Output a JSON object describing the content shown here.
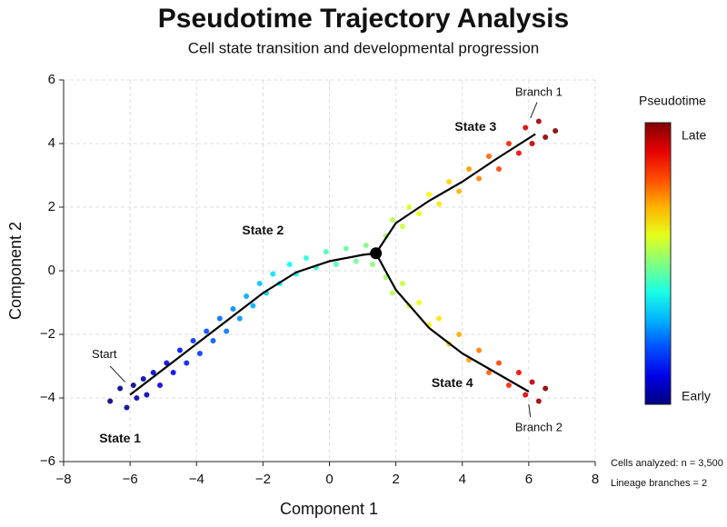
{
  "chart_data": {
    "type": "scatter",
    "title": "Pseudotime Trajectory Analysis",
    "subtitle": "Cell state transition and developmental progression",
    "x_label": "Component 1",
    "y_label": "Component 2",
    "xlim": [
      -8,
      8
    ],
    "ylim": [
      -6,
      6
    ],
    "xticks": [
      {
        "value": -8,
        "label": "−8"
      },
      {
        "value": -6,
        "label": "−6"
      },
      {
        "value": -4,
        "label": "−4"
      },
      {
        "value": -2,
        "label": "−2"
      },
      0,
      2,
      4,
      6,
      8
    ],
    "yticks": [
      {
        "value": -6,
        "label": "−6"
      },
      {
        "value": -4,
        "label": "−4"
      },
      {
        "value": -2,
        "label": "−2"
      },
      0,
      2,
      4,
      6
    ],
    "grid": true,
    "colorbar": {
      "title": "Pseudotime",
      "low_label": "Early",
      "high_label": "Late",
      "colormap": "jet"
    },
    "points": {
      "x": [
        -6.6,
        -6.3,
        -6.1,
        -5.9,
        -5.8,
        -5.6,
        -5.5,
        -5.3,
        -5.1,
        -4.9,
        -4.7,
        -4.5,
        -4.3,
        -4.1,
        -3.9,
        -3.7,
        -3.5,
        -3.3,
        -3.1,
        -2.9,
        -2.7,
        -2.5,
        -2.3,
        -2.1,
        -1.9,
        -1.7,
        -1.5,
        -1.2,
        -1.0,
        -0.7,
        -0.4,
        -0.1,
        0.2,
        0.5,
        0.8,
        1.1,
        1.3,
        1.7,
        1.9,
        2.2,
        2.4,
        2.7,
        3.0,
        3.3,
        3.6,
        3.9,
        4.2,
        4.5,
        4.8,
        5.1,
        5.4,
        5.7,
        5.9,
        6.1,
        6.3,
        6.5,
        6.8,
        1.7,
        1.9,
        2.2,
        2.4,
        2.7,
        3.0,
        3.3,
        3.6,
        3.9,
        4.2,
        4.5,
        4.8,
        5.1,
        5.4,
        5.7,
        5.9,
        6.1,
        6.3,
        6.5
      ],
      "y": [
        -4.1,
        -3.7,
        -4.3,
        -3.6,
        -4.0,
        -3.4,
        -3.9,
        -3.2,
        -3.6,
        -2.9,
        -3.2,
        -2.5,
        -2.9,
        -2.2,
        -2.6,
        -1.9,
        -2.2,
        -1.5,
        -1.9,
        -1.2,
        -1.5,
        -0.8,
        -1.1,
        -0.4,
        -0.7,
        -0.1,
        -0.4,
        0.2,
        -0.1,
        0.4,
        0.1,
        0.6,
        0.2,
        0.7,
        0.3,
        0.8,
        0.2,
        1.1,
        1.6,
        1.4,
        2.0,
        1.8,
        2.4,
        2.1,
        2.8,
        2.5,
        3.2,
        2.9,
        3.6,
        3.2,
        4.0,
        3.7,
        4.5,
        4.0,
        4.7,
        4.2,
        4.4,
        -0.2,
        -0.7,
        -0.4,
        -1.1,
        -1.0,
        -1.7,
        -1.5,
        -2.3,
        -2.0,
        -2.8,
        -2.5,
        -3.2,
        -2.9,
        -3.6,
        -3.2,
        -3.9,
        -3.5,
        -4.1,
        -3.7
      ],
      "pseudotime": [
        0.0,
        0.01,
        0.02,
        0.03,
        0.04,
        0.05,
        0.06,
        0.08,
        0.09,
        0.11,
        0.12,
        0.14,
        0.15,
        0.17,
        0.18,
        0.2,
        0.21,
        0.23,
        0.24,
        0.26,
        0.27,
        0.29,
        0.3,
        0.32,
        0.33,
        0.35,
        0.36,
        0.38,
        0.39,
        0.41,
        0.42,
        0.44,
        0.45,
        0.47,
        0.48,
        0.5,
        0.51,
        0.53,
        0.55,
        0.57,
        0.59,
        0.61,
        0.63,
        0.65,
        0.67,
        0.7,
        0.72,
        0.75,
        0.78,
        0.81,
        0.84,
        0.88,
        0.91,
        0.94,
        0.97,
        0.99,
        1.0,
        0.53,
        0.55,
        0.57,
        0.59,
        0.61,
        0.63,
        0.65,
        0.67,
        0.7,
        0.72,
        0.75,
        0.78,
        0.81,
        0.84,
        0.88,
        0.91,
        0.94,
        0.97,
        0.99
      ]
    },
    "trajectory": [
      {
        "x": [
          -6,
          -5,
          -4,
          -3,
          -2,
          -1,
          0,
          1,
          1.4
        ],
        "y": [
          -3.9,
          -3.1,
          -2.3,
          -1.5,
          -0.7,
          -0.05,
          0.3,
          0.5,
          0.55
        ]
      },
      {
        "x": [
          1.4,
          2,
          3,
          4,
          5,
          6.2
        ],
        "y": [
          0.55,
          1.5,
          2.2,
          2.8,
          3.5,
          4.3
        ]
      },
      {
        "x": [
          1.4,
          2,
          3,
          4,
          5,
          6
        ],
        "y": [
          0.55,
          -0.6,
          -1.8,
          -2.6,
          -3.2,
          -3.8
        ]
      }
    ],
    "trajectory_color": "#000000",
    "branch_point": {
      "x": 1.4,
      "y": 0.55
    },
    "annotations": [
      "Start",
      "State 1",
      "State 2",
      "State 3",
      "State 4",
      "Branch 1",
      "Branch 2"
    ],
    "notes": [
      "Cells analyzed: n = 3,500",
      "Lineage branches = 2"
    ]
  }
}
